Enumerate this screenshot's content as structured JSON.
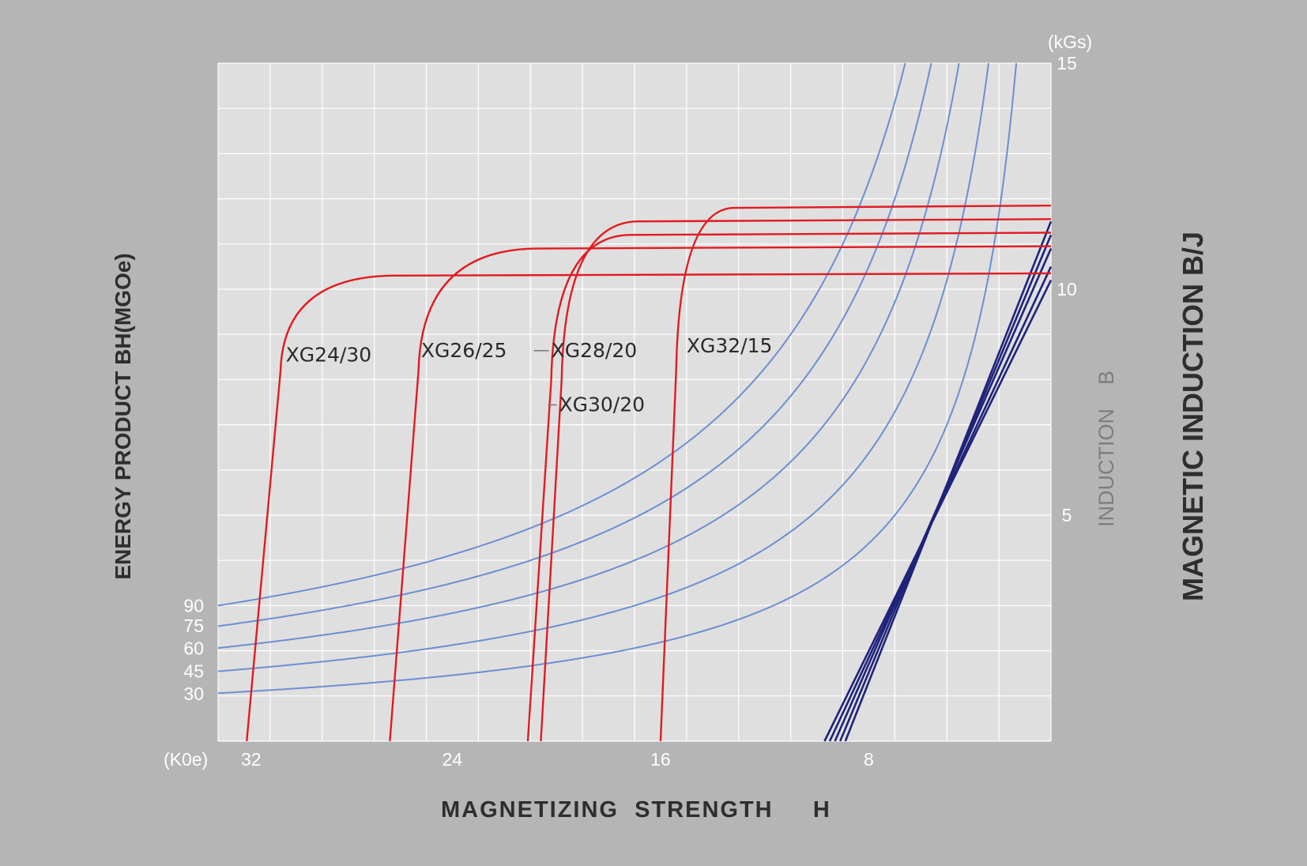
{
  "chart_data": {
    "type": "line",
    "title": "",
    "xlabel": "MAGNETIZING  STRENGTH     H",
    "x_unit": "(K0e)",
    "x_ticks": [
      32,
      24,
      16,
      8
    ],
    "x_reversed": true,
    "xlim": [
      33,
      1
    ],
    "ylabel_left": "ENERGY PRODUCT BH(MGOe)",
    "ylabel_right_inner": "INDUCTION    B",
    "ylabel_right_outer": "MAGNETIC INDUCTION B/J",
    "y_unit": "(kGs)",
    "y_ticks_right": [
      15,
      10,
      5
    ],
    "ylim": [
      0,
      15
    ],
    "energy_ticks": [
      {
        "label": "90",
        "y": 3.0
      },
      {
        "label": "75",
        "y": 2.55
      },
      {
        "label": "60",
        "y": 2.05
      },
      {
        "label": "45",
        "y": 1.55
      },
      {
        "label": "30",
        "y": 1.05
      }
    ],
    "grid": true,
    "demag_series": [
      {
        "name": "XG24/30",
        "br": 10.3,
        "hcj": 31.9,
        "knee_h": 30.6,
        "knee_b": 8.2,
        "top_h": 26.3,
        "label_h": 30.4,
        "label_b": 8.4
      },
      {
        "name": "XG26/25",
        "br": 10.9,
        "hcj": 26.4,
        "knee_h": 25.3,
        "knee_b": 8.2,
        "top_h": 20.8,
        "label_h": 25.2,
        "label_b": 8.5
      },
      {
        "name": "XG28/20",
        "br": 11.2,
        "hcj": 21.1,
        "knee_h": 20.2,
        "knee_b": 8.0,
        "top_h": 17.2,
        "label_h": 20.2,
        "label_b": 8.5
      },
      {
        "name": "XG30/20",
        "br": 11.5,
        "hcj": 20.6,
        "knee_h": 19.8,
        "knee_b": 8.0,
        "top_h": 16.9,
        "label_h": 19.9,
        "label_b": 7.3
      },
      {
        "name": "XG32/15",
        "br": 11.8,
        "hcj": 16.0,
        "knee_h": 15.4,
        "knee_b": 8.2,
        "top_h": 13.2,
        "label_h": 15.0,
        "label_b": 8.6
      }
    ],
    "energy_hyperbolas": [
      {
        "label": "90",
        "bh": 99
      },
      {
        "label": "75",
        "bh": 84
      },
      {
        "label": "60",
        "bh": 68
      },
      {
        "label": "45",
        "bh": 51
      },
      {
        "label": "30",
        "bh": 35
      }
    ],
    "load_lines": [
      {
        "br": 10.2,
        "h0": 9.7
      },
      {
        "br": 10.5,
        "h0": 9.5
      },
      {
        "br": 10.9,
        "h0": 9.3
      },
      {
        "br": 11.2,
        "h0": 9.1
      },
      {
        "br": 11.5,
        "h0": 8.9
      }
    ],
    "colors": {
      "demag": "#e11b22",
      "energy": "#6d8ed0",
      "load": "#1f237a",
      "plot_bg": "#dfdfdf",
      "grid": "#ffffff",
      "page_bg": "#b5b5b5"
    }
  }
}
